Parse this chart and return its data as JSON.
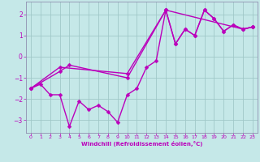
{
  "xlabel": "Windchill (Refroidissement éolien,°C)",
  "background_color": "#c5e8e8",
  "grid_color": "#a0c8c8",
  "line_color": "#bb00bb",
  "xlim": [
    -0.5,
    23.5
  ],
  "ylim": [
    -3.6,
    2.6
  ],
  "yticks": [
    -3,
    -2,
    -1,
    0,
    1,
    2
  ],
  "xticks": [
    0,
    1,
    2,
    3,
    4,
    5,
    6,
    7,
    8,
    9,
    10,
    11,
    12,
    13,
    14,
    15,
    16,
    17,
    18,
    19,
    20,
    21,
    22,
    23
  ],
  "s1_x": [
    0,
    1,
    2,
    3,
    4,
    5,
    6,
    7,
    8,
    9,
    10,
    11,
    12,
    13,
    14,
    15,
    16,
    17,
    18,
    19,
    20,
    21,
    22,
    23
  ],
  "s1_y": [
    -1.5,
    -1.3,
    -1.8,
    -1.8,
    -3.3,
    -2.1,
    -2.5,
    -2.3,
    -2.6,
    -3.1,
    -1.8,
    -1.5,
    -0.5,
    -0.2,
    2.2,
    0.6,
    1.3,
    1.0,
    2.2,
    1.8,
    1.2,
    1.5,
    1.3,
    1.4
  ],
  "s2_x": [
    0,
    3,
    4,
    10,
    14,
    15,
    16,
    17,
    18,
    19,
    20,
    21,
    22,
    23
  ],
  "s2_y": [
    -1.5,
    -0.7,
    -0.4,
    -1.0,
    2.2,
    0.6,
    1.3,
    1.0,
    2.2,
    1.8,
    1.2,
    1.5,
    1.3,
    1.4
  ],
  "s3_x": [
    0,
    3,
    10,
    14,
    22,
    23
  ],
  "s3_y": [
    -1.5,
    -0.5,
    -0.8,
    2.2,
    1.3,
    1.4
  ],
  "markersize": 2.5,
  "linewidth": 1.0
}
